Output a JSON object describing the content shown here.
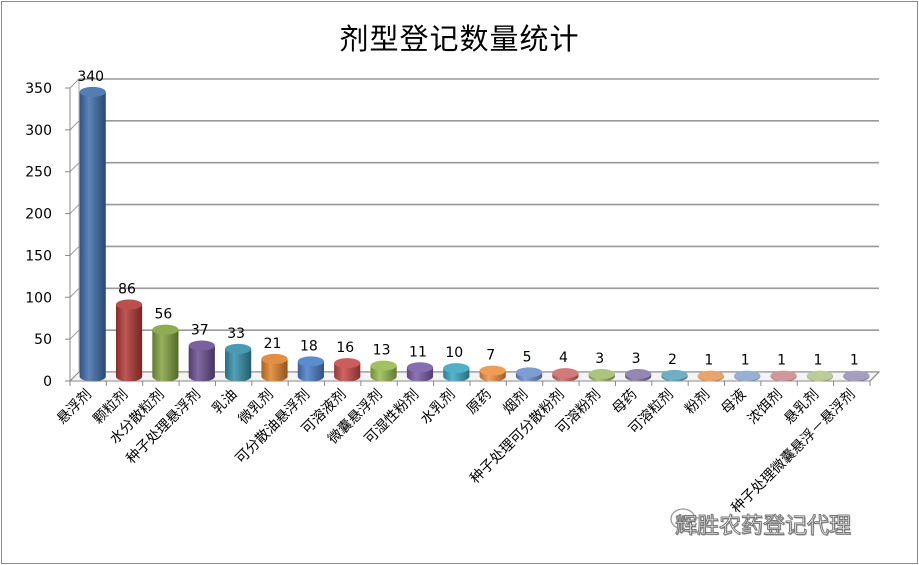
{
  "chart_data": {
    "type": "bar",
    "style": "3d-cylinder",
    "title": "剂型登记数量统计",
    "xlabel": "",
    "ylabel": "",
    "ylim": [
      0,
      350
    ],
    "yticks": [
      0,
      50,
      100,
      150,
      200,
      250,
      300,
      350
    ],
    "grid": true,
    "legend": null,
    "categories": [
      "悬浮剂",
      "颗粒剂",
      "水分散粒剂",
      "种子处理悬浮剂",
      "乳油",
      "微乳剂",
      "可分散油悬浮剂",
      "可溶液剂",
      "微囊悬浮剂",
      "可湿性粉剂",
      "水乳剂",
      "原药",
      "烟剂",
      "种子处理可分散粉剂",
      "可溶粉剂",
      "母药",
      "可溶粒剂",
      "粉剂",
      "母液",
      "浓饵剂",
      "悬乳剂",
      "种子处理微囊悬浮－悬浮剂"
    ],
    "values": [
      340,
      86,
      56,
      37,
      33,
      21,
      18,
      16,
      13,
      11,
      10,
      7,
      5,
      4,
      3,
      3,
      2,
      1,
      1,
      1,
      1,
      1
    ],
    "data_labels": true,
    "colors": [
      "#3f6fad",
      "#b33b37",
      "#83a33f",
      "#6b4f92",
      "#3590ab",
      "#e0832a",
      "#4a7fc9",
      "#c84a48",
      "#98bb4d",
      "#7a5ea8",
      "#3aa8c3",
      "#ef9140",
      "#6f93cf",
      "#cc6b6a",
      "#a4bd6c",
      "#8878ad",
      "#5fa6bd",
      "#e79a5d",
      "#8da6cf",
      "#cd8c8b",
      "#b5c68e",
      "#9c93b7"
    ]
  },
  "watermark": {
    "text": "辉胜农药登记代理",
    "icon": "wechat-icon"
  }
}
